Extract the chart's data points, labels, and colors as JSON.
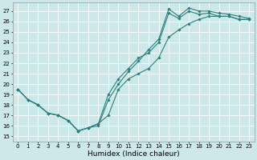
{
  "xlabel": "Humidex (Indice chaleur)",
  "bg_color": "#cce8e8",
  "grid_color": "#ffffff",
  "line_color": "#2d7f7f",
  "xlim": [
    -0.5,
    23.5
  ],
  "ylim": [
    14.5,
    27.8
  ],
  "yticks": [
    15,
    16,
    17,
    18,
    19,
    20,
    21,
    22,
    23,
    24,
    25,
    26,
    27
  ],
  "xticks": [
    0,
    1,
    2,
    3,
    4,
    5,
    6,
    7,
    8,
    9,
    10,
    11,
    12,
    13,
    14,
    15,
    16,
    17,
    18,
    19,
    20,
    21,
    22,
    23
  ],
  "line1_x": [
    0,
    1,
    2,
    3,
    4,
    5,
    6,
    7,
    8,
    9,
    10,
    11,
    12,
    13,
    14,
    15,
    16,
    17,
    18,
    19,
    20,
    21,
    22,
    23
  ],
  "line1_y": [
    19.5,
    18.5,
    18.0,
    17.2,
    17.0,
    16.5,
    15.5,
    15.8,
    16.0,
    18.5,
    20.0,
    21.2,
    22.2,
    23.3,
    24.3,
    27.2,
    26.5,
    27.3,
    27.0,
    27.0,
    26.8,
    26.7,
    26.5,
    26.3
  ],
  "line2_x": [
    0,
    1,
    2,
    3,
    4,
    5,
    6,
    7,
    8,
    9,
    10,
    11,
    12,
    13,
    14,
    15,
    16,
    17,
    18,
    19,
    20,
    21,
    22,
    23
  ],
  "line2_y": [
    19.5,
    18.5,
    18.0,
    17.2,
    17.0,
    16.5,
    15.5,
    15.8,
    16.2,
    19.0,
    20.5,
    21.5,
    22.5,
    23.0,
    24.0,
    26.8,
    26.3,
    27.0,
    26.7,
    26.8,
    26.5,
    26.5,
    26.2,
    26.2
  ],
  "line3_x": [
    0,
    1,
    2,
    3,
    4,
    5,
    6,
    7,
    8,
    9,
    10,
    11,
    12,
    13,
    14,
    15,
    16,
    17,
    18,
    19,
    20,
    21,
    22,
    23
  ],
  "line3_y": [
    19.5,
    18.5,
    18.0,
    17.2,
    17.0,
    16.5,
    15.5,
    15.8,
    16.2,
    17.0,
    19.5,
    20.5,
    21.0,
    21.5,
    22.5,
    24.5,
    25.2,
    25.8,
    26.2,
    26.5,
    26.5,
    26.5,
    26.2,
    26.2
  ],
  "figsize": [
    3.2,
    2.0
  ],
  "dpi": 100,
  "tick_fontsize": 5.0,
  "xlabel_fontsize": 6.5,
  "linewidth": 0.8,
  "markersize": 1.8
}
